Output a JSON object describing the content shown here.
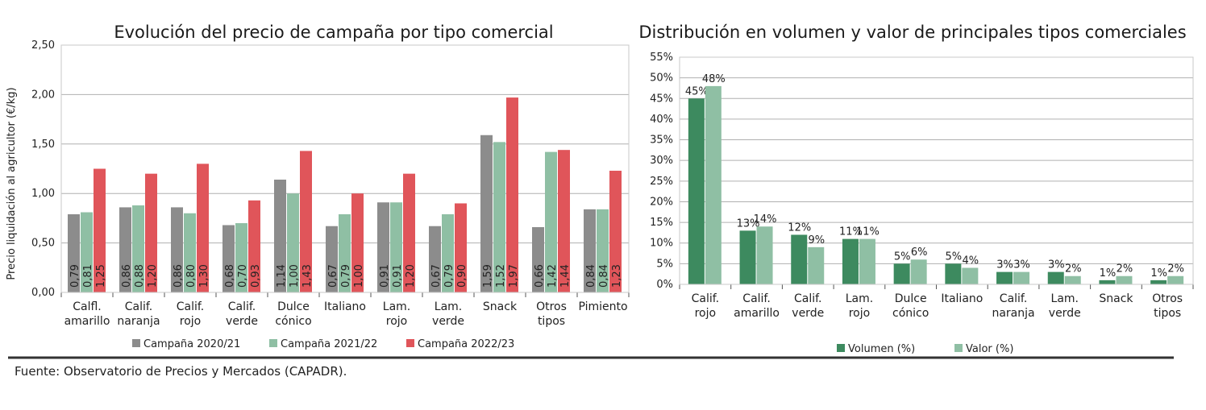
{
  "chart_data": [
    {
      "type": "bar",
      "title": "Evolución del precio de campaña por tipo comercial",
      "ylabel": "Precio liquidación al agricultor (€/kg)",
      "xlabel": "",
      "ylim": [
        0,
        2.5
      ],
      "yticks": [
        "0,00",
        "0,50",
        "1,00",
        "1,50",
        "2,00",
        "2,50"
      ],
      "grid": true,
      "legend": "bottom",
      "categories": [
        [
          "Calfl.",
          "amarillo"
        ],
        [
          "Calif.",
          "naranja"
        ],
        [
          "Calif.",
          "rojo"
        ],
        [
          "Calif.",
          "verde"
        ],
        [
          "Dulce",
          "cónico"
        ],
        [
          "Italiano"
        ],
        [
          "Lam.",
          "rojo"
        ],
        [
          "Lam.",
          "verde"
        ],
        [
          "Snack"
        ],
        [
          "Otros",
          "tipos"
        ],
        [
          "Pimiento"
        ]
      ],
      "series": [
        {
          "name": "Campaña 2020/21",
          "color": "#8c8c8c",
          "values": [
            0.79,
            0.86,
            0.86,
            0.68,
            1.14,
            0.67,
            0.91,
            0.67,
            1.59,
            0.66,
            0.84
          ],
          "labels": [
            "0,79",
            "0,86",
            "0,86",
            "0,68",
            "1,14",
            "0,67",
            "0,91",
            "0,67",
            "1,59",
            "0,66",
            "0,84"
          ]
        },
        {
          "name": "Campaña 2021/22",
          "color": "#8fbfa4",
          "values": [
            0.81,
            0.88,
            0.8,
            0.7,
            1.0,
            0.79,
            0.91,
            0.79,
            1.52,
            1.42,
            0.84
          ],
          "labels": [
            "0,81",
            "0,88",
            "0,80",
            "0,70",
            "1,00",
            "0,79",
            "0,91",
            "0,79",
            "1,52",
            "1,42",
            "0,84"
          ]
        },
        {
          "name": "Campaña 2022/23",
          "color": "#e0555a",
          "values": [
            1.25,
            1.2,
            1.3,
            0.93,
            1.43,
            1.0,
            1.2,
            0.9,
            1.97,
            1.44,
            1.23
          ],
          "labels": [
            "1,25",
            "1,20",
            "1,30",
            "0,93",
            "1,43",
            "1,00",
            "1,20",
            "0,90",
            "1,97",
            "1,44",
            "1,23"
          ]
        }
      ]
    },
    {
      "type": "bar",
      "title": "Distribución en volumen y valor de principales tipos comerciales",
      "xlabel": "",
      "ylabel": "",
      "ylim": [
        0,
        55
      ],
      "yticks": [
        "0%",
        "5%",
        "10%",
        "15%",
        "20%",
        "25%",
        "30%",
        "35%",
        "40%",
        "45%",
        "50%",
        "55%"
      ],
      "grid": true,
      "legend": "bottom",
      "categories": [
        [
          "Calif.",
          "rojo"
        ],
        [
          "Calif.",
          "amarillo"
        ],
        [
          "Calif.",
          "verde"
        ],
        [
          "Lam.",
          "rojo"
        ],
        [
          "Dulce",
          "cónico"
        ],
        [
          "Italiano"
        ],
        [
          "Calif.",
          "naranja"
        ],
        [
          "Lam.",
          "verde"
        ],
        [
          "Snack"
        ],
        [
          "Otros",
          "tipos"
        ]
      ],
      "series": [
        {
          "name": "Volumen (%)",
          "color": "#3d8a5f",
          "values": [
            45,
            13,
            12,
            11,
            5,
            5,
            3,
            3,
            1,
            1
          ],
          "labels": [
            "45%",
            "13%",
            "12%",
            "11%",
            "5%",
            "5%",
            "3%",
            "3%",
            "1%",
            "1%"
          ]
        },
        {
          "name": "Valor (%)",
          "color": "#8fbfa4",
          "values": [
            48,
            14,
            9,
            11,
            6,
            4,
            3,
            2,
            2,
            2
          ],
          "labels": [
            "48%",
            "14%",
            "9%",
            "11%",
            "6%",
            "4%",
            "3%",
            "2%",
            "2%",
            "2%"
          ]
        }
      ]
    }
  ],
  "source": "Fuente: Observatorio de Precios y Mercados (CAPADR)."
}
